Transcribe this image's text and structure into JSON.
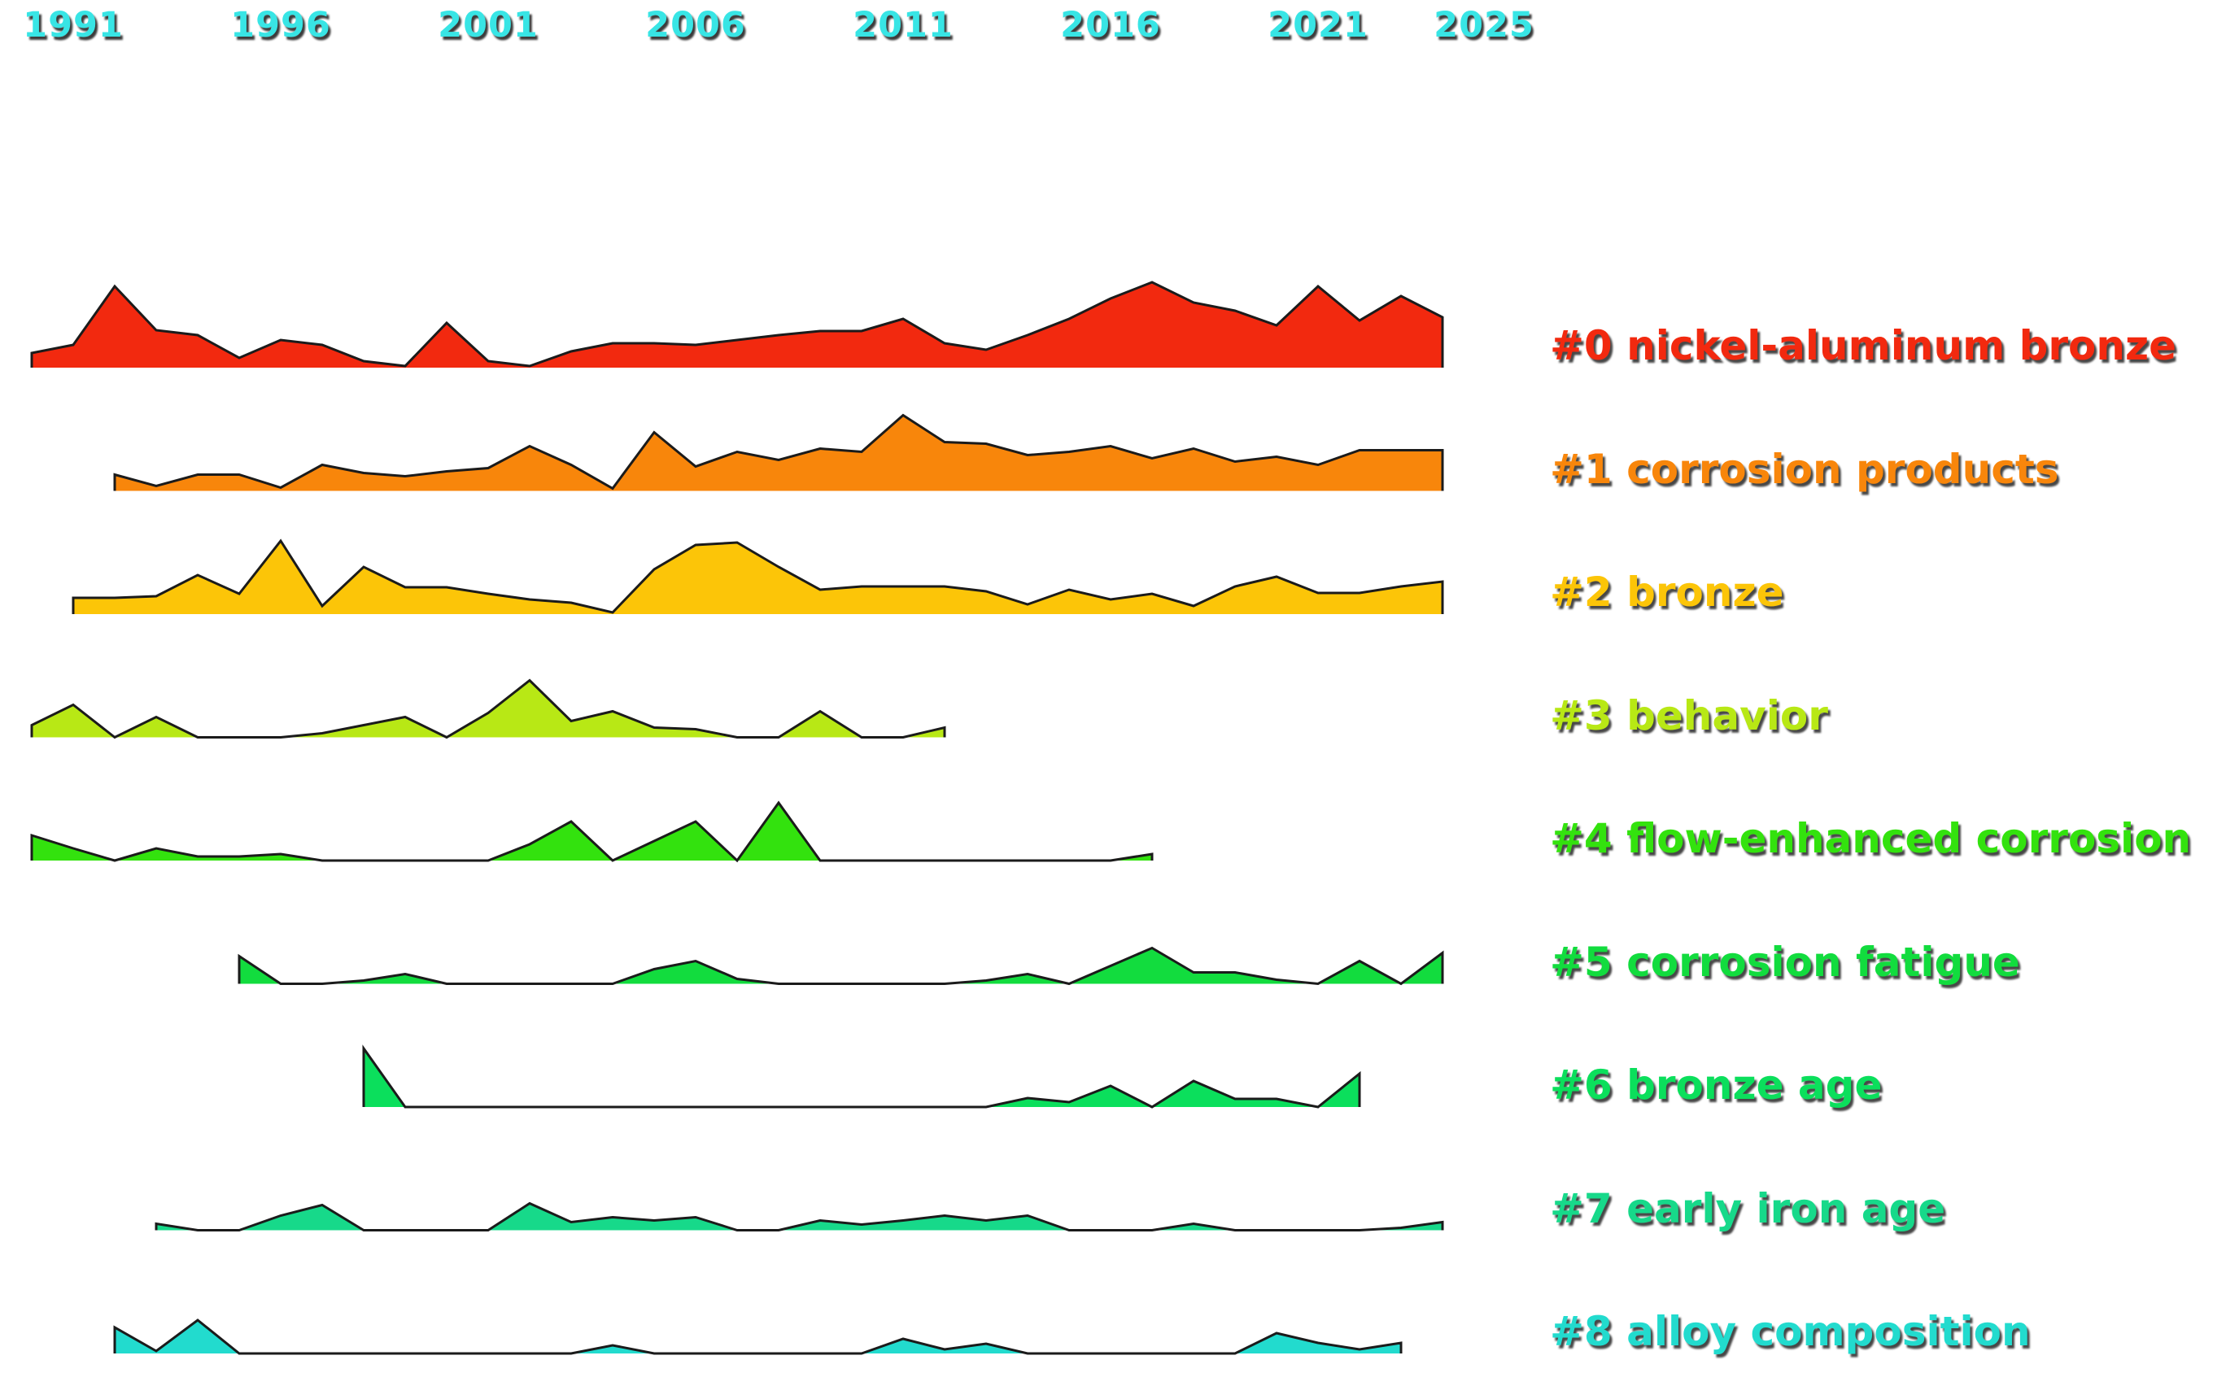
{
  "chart_data": {
    "type": "area",
    "title": "",
    "xlabel": "",
    "ylabel": "",
    "value_units": "relative yearly frequency (estimated, band height = 150 units)",
    "x_range": [
      1990,
      2025
    ],
    "grid": false,
    "legend_position": "right-of-each-stream",
    "axis_tick_color": "#38e5e5",
    "outline_color": "#1b1b1b",
    "x_ticks": [
      {
        "year": 1991,
        "label": "1991"
      },
      {
        "year": 1996,
        "label": "1996"
      },
      {
        "year": 2001,
        "label": "2001"
      },
      {
        "year": 2006,
        "label": "2006"
      },
      {
        "year": 2011,
        "label": "2011"
      },
      {
        "year": 2016,
        "label": "2016"
      },
      {
        "year": 2021,
        "label": "2021"
      },
      {
        "year": 2025,
        "label": "2025"
      }
    ],
    "series": [
      {
        "id": 0,
        "label": "#0 nickel-aluminum bronze",
        "color": "#f2290f",
        "points": [
          [
            1990,
            18
          ],
          [
            1991,
            28
          ],
          [
            1992,
            100
          ],
          [
            1993,
            46
          ],
          [
            1994,
            40
          ],
          [
            1995,
            12
          ],
          [
            1996,
            34
          ],
          [
            1997,
            28
          ],
          [
            1998,
            8
          ],
          [
            1999,
            2
          ],
          [
            2000,
            55
          ],
          [
            2001,
            8
          ],
          [
            2002,
            2
          ],
          [
            2003,
            20
          ],
          [
            2004,
            30
          ],
          [
            2005,
            30
          ],
          [
            2006,
            28
          ],
          [
            2007,
            34
          ],
          [
            2008,
            40
          ],
          [
            2009,
            45
          ],
          [
            2010,
            45
          ],
          [
            2011,
            60
          ],
          [
            2012,
            30
          ],
          [
            2013,
            22
          ],
          [
            2014,
            40
          ],
          [
            2015,
            60
          ],
          [
            2016,
            85
          ],
          [
            2017,
            105
          ],
          [
            2018,
            80
          ],
          [
            2019,
            70
          ],
          [
            2020,
            52
          ],
          [
            2021,
            100
          ],
          [
            2022,
            58
          ],
          [
            2023,
            88
          ],
          [
            2024,
            62
          ]
        ]
      },
      {
        "id": 1,
        "label": "#1 corrosion products",
        "color": "#f8860b",
        "points": [
          [
            1992,
            20
          ],
          [
            1993,
            6
          ],
          [
            1994,
            20
          ],
          [
            1995,
            20
          ],
          [
            1996,
            4
          ],
          [
            1997,
            32
          ],
          [
            1998,
            22
          ],
          [
            1999,
            18
          ],
          [
            2000,
            24
          ],
          [
            2001,
            28
          ],
          [
            2002,
            55
          ],
          [
            2003,
            32
          ],
          [
            2004,
            3
          ],
          [
            2005,
            72
          ],
          [
            2006,
            30
          ],
          [
            2007,
            48
          ],
          [
            2008,
            38
          ],
          [
            2009,
            52
          ],
          [
            2010,
            48
          ],
          [
            2011,
            93
          ],
          [
            2012,
            60
          ],
          [
            2013,
            58
          ],
          [
            2014,
            44
          ],
          [
            2015,
            48
          ],
          [
            2016,
            55
          ],
          [
            2017,
            40
          ],
          [
            2018,
            52
          ],
          [
            2019,
            36
          ],
          [
            2020,
            42
          ],
          [
            2021,
            32
          ],
          [
            2022,
            50
          ],
          [
            2023,
            50
          ],
          [
            2024,
            50
          ]
        ]
      },
      {
        "id": 2,
        "label": "#2 bronze",
        "color": "#fcc508",
        "points": [
          [
            1991,
            20
          ],
          [
            1992,
            20
          ],
          [
            1993,
            22
          ],
          [
            1994,
            48
          ],
          [
            1995,
            25
          ],
          [
            1996,
            90
          ],
          [
            1997,
            10
          ],
          [
            1998,
            58
          ],
          [
            1999,
            33
          ],
          [
            2000,
            33
          ],
          [
            2001,
            25
          ],
          [
            2002,
            18
          ],
          [
            2003,
            14
          ],
          [
            2004,
            2
          ],
          [
            2005,
            55
          ],
          [
            2006,
            85
          ],
          [
            2007,
            88
          ],
          [
            2008,
            58
          ],
          [
            2009,
            30
          ],
          [
            2010,
            34
          ],
          [
            2011,
            34
          ],
          [
            2012,
            34
          ],
          [
            2013,
            28
          ],
          [
            2014,
            12
          ],
          [
            2015,
            30
          ],
          [
            2016,
            18
          ],
          [
            2017,
            25
          ],
          [
            2018,
            10
          ],
          [
            2019,
            34
          ],
          [
            2020,
            46
          ],
          [
            2021,
            26
          ],
          [
            2022,
            26
          ],
          [
            2023,
            34
          ],
          [
            2024,
            40
          ]
        ]
      },
      {
        "id": 3,
        "label": "#3 behavior",
        "color": "#b8e815",
        "points": [
          [
            1990,
            15
          ],
          [
            1991,
            40
          ],
          [
            1992,
            0
          ],
          [
            1993,
            25
          ],
          [
            1994,
            0
          ],
          [
            1995,
            0
          ],
          [
            1996,
            0
          ],
          [
            1997,
            5
          ],
          [
            1998,
            15
          ],
          [
            1999,
            25
          ],
          [
            2000,
            0
          ],
          [
            2001,
            30
          ],
          [
            2002,
            70
          ],
          [
            2003,
            20
          ],
          [
            2004,
            32
          ],
          [
            2005,
            12
          ],
          [
            2006,
            10
          ],
          [
            2007,
            0
          ],
          [
            2008,
            0
          ],
          [
            2009,
            32
          ],
          [
            2010,
            0
          ],
          [
            2011,
            0
          ],
          [
            2012,
            12
          ]
        ]
      },
      {
        "id": 4,
        "label": "#4 flow-enhanced corrosion",
        "color": "#33e20e",
        "points": [
          [
            1990,
            31
          ],
          [
            1991,
            15
          ],
          [
            1992,
            0
          ],
          [
            1993,
            15
          ],
          [
            1994,
            5
          ],
          [
            1995,
            5
          ],
          [
            1996,
            8
          ],
          [
            1997,
            0
          ],
          [
            1998,
            0
          ],
          [
            1999,
            0
          ],
          [
            2000,
            0
          ],
          [
            2001,
            0
          ],
          [
            2002,
            20
          ],
          [
            2003,
            48
          ],
          [
            2004,
            0
          ],
          [
            2005,
            24
          ],
          [
            2006,
            48
          ],
          [
            2007,
            0
          ],
          [
            2008,
            71
          ],
          [
            2009,
            0
          ],
          [
            2010,
            0
          ],
          [
            2011,
            0
          ],
          [
            2012,
            0
          ],
          [
            2013,
            0
          ],
          [
            2014,
            0
          ],
          [
            2015,
            0
          ],
          [
            2016,
            0
          ],
          [
            2017,
            8
          ]
        ]
      },
      {
        "id": 5,
        "label": "#5 corrosion fatigue",
        "color": "#12dc3e",
        "points": [
          [
            1995,
            34
          ],
          [
            1996,
            0
          ],
          [
            1997,
            0
          ],
          [
            1998,
            4
          ],
          [
            1999,
            12
          ],
          [
            2000,
            0
          ],
          [
            2001,
            0
          ],
          [
            2002,
            0
          ],
          [
            2003,
            0
          ],
          [
            2004,
            0
          ],
          [
            2005,
            18
          ],
          [
            2006,
            28
          ],
          [
            2007,
            6
          ],
          [
            2008,
            0
          ],
          [
            2009,
            0
          ],
          [
            2010,
            0
          ],
          [
            2011,
            0
          ],
          [
            2012,
            0
          ],
          [
            2013,
            4
          ],
          [
            2014,
            12
          ],
          [
            2015,
            0
          ],
          [
            2016,
            22
          ],
          [
            2017,
            44
          ],
          [
            2018,
            14
          ],
          [
            2019,
            14
          ],
          [
            2020,
            5
          ],
          [
            2021,
            0
          ],
          [
            2022,
            28
          ],
          [
            2023,
            0
          ],
          [
            2024,
            38
          ]
        ]
      },
      {
        "id": 6,
        "label": "#6 bronze age",
        "color": "#0bdf5c",
        "points": [
          [
            1998,
            72
          ],
          [
            1999,
            0
          ],
          [
            2000,
            0
          ],
          [
            2001,
            0
          ],
          [
            2002,
            0
          ],
          [
            2003,
            0
          ],
          [
            2004,
            0
          ],
          [
            2005,
            0
          ],
          [
            2006,
            0
          ],
          [
            2007,
            0
          ],
          [
            2008,
            0
          ],
          [
            2009,
            0
          ],
          [
            2010,
            0
          ],
          [
            2011,
            0
          ],
          [
            2012,
            0
          ],
          [
            2013,
            0
          ],
          [
            2014,
            11
          ],
          [
            2015,
            6
          ],
          [
            2016,
            26
          ],
          [
            2017,
            0
          ],
          [
            2018,
            32
          ],
          [
            2019,
            10
          ],
          [
            2020,
            10
          ],
          [
            2021,
            0
          ],
          [
            2022,
            41
          ]
        ]
      },
      {
        "id": 7,
        "label": "#7 early iron age",
        "color": "#17d98a",
        "points": [
          [
            1993,
            8
          ],
          [
            1994,
            0
          ],
          [
            1995,
            0
          ],
          [
            1996,
            18
          ],
          [
            1997,
            31
          ],
          [
            1998,
            0
          ],
          [
            1999,
            0
          ],
          [
            2000,
            0
          ],
          [
            2001,
            0
          ],
          [
            2002,
            33
          ],
          [
            2003,
            10
          ],
          [
            2004,
            16
          ],
          [
            2005,
            12
          ],
          [
            2006,
            16
          ],
          [
            2007,
            0
          ],
          [
            2008,
            0
          ],
          [
            2009,
            12
          ],
          [
            2010,
            7
          ],
          [
            2011,
            12
          ],
          [
            2012,
            18
          ],
          [
            2013,
            12
          ],
          [
            2014,
            18
          ],
          [
            2015,
            0
          ],
          [
            2016,
            0
          ],
          [
            2017,
            0
          ],
          [
            2018,
            8
          ],
          [
            2019,
            0
          ],
          [
            2020,
            0
          ],
          [
            2021,
            0
          ],
          [
            2022,
            0
          ],
          [
            2023,
            3
          ],
          [
            2024,
            10
          ]
        ]
      },
      {
        "id": 8,
        "label": "#8 alloy composition",
        "color": "#22dbce",
        "points": [
          [
            1992,
            32
          ],
          [
            1993,
            3
          ],
          [
            1994,
            41
          ],
          [
            1995,
            0
          ],
          [
            1996,
            0
          ],
          [
            1997,
            0
          ],
          [
            1998,
            0
          ],
          [
            1999,
            0
          ],
          [
            2000,
            0
          ],
          [
            2001,
            0
          ],
          [
            2002,
            0
          ],
          [
            2003,
            0
          ],
          [
            2004,
            10
          ],
          [
            2005,
            0
          ],
          [
            2006,
            0
          ],
          [
            2007,
            0
          ],
          [
            2008,
            0
          ],
          [
            2009,
            0
          ],
          [
            2010,
            0
          ],
          [
            2011,
            18
          ],
          [
            2012,
            5
          ],
          [
            2013,
            12
          ],
          [
            2014,
            0
          ],
          [
            2015,
            0
          ],
          [
            2016,
            0
          ],
          [
            2017,
            0
          ],
          [
            2018,
            0
          ],
          [
            2019,
            0
          ],
          [
            2020,
            25
          ],
          [
            2021,
            13
          ],
          [
            2022,
            5
          ],
          [
            2023,
            13
          ]
        ]
      }
    ]
  }
}
